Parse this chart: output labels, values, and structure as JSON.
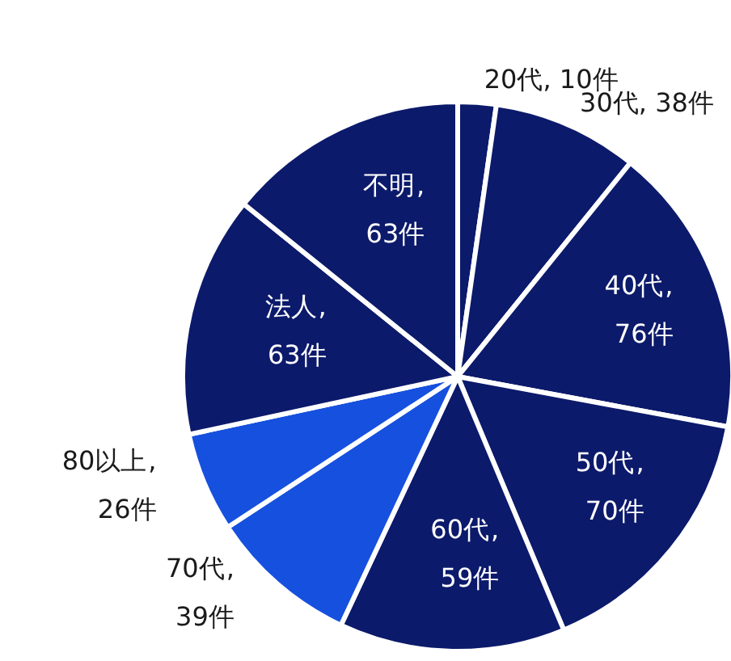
{
  "chart_data": {
    "type": "pie",
    "categories": [
      "20代",
      "30代",
      "40代",
      "50代",
      "60代",
      "70代",
      "80以上",
      "法人",
      "不明"
    ],
    "values": [
      10,
      38,
      76,
      70,
      59,
      39,
      26,
      63,
      63
    ],
    "colors": [
      "#0c1a6b",
      "#0c1a6b",
      "#0c1a6b",
      "#0c1a6b",
      "#0c1a6b",
      "#1650de",
      "#1650de",
      "#0c1a6b",
      "#0c1a6b"
    ],
    "value_labels": [
      ", 10件",
      ", 38件",
      ", 76件",
      ", 70件",
      ", 59件",
      ", 39件",
      ", 26件",
      ", 63件",
      ", 63件"
    ]
  }
}
